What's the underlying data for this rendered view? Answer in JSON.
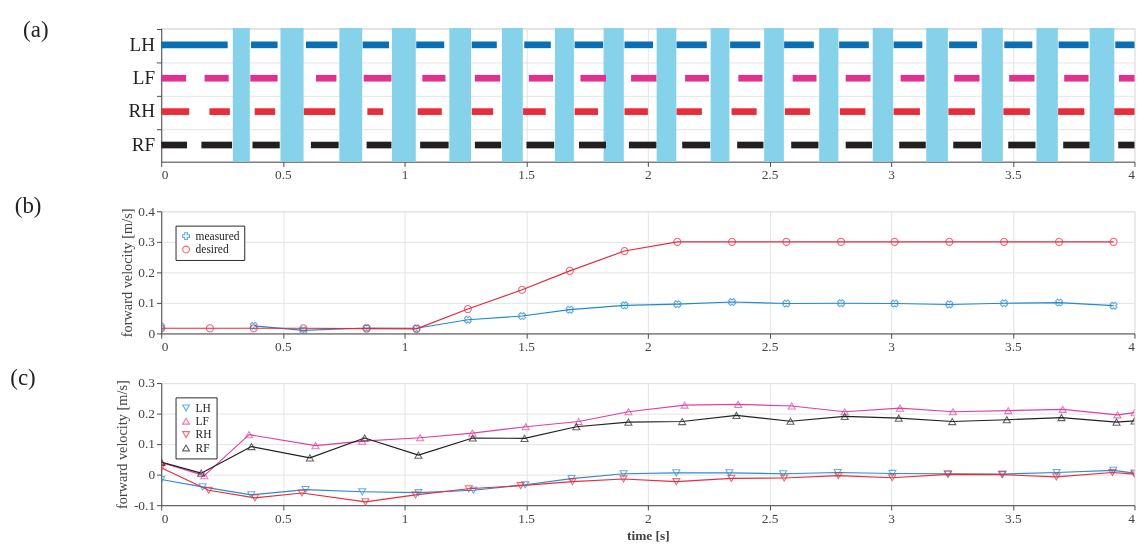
{
  "chart_data": [
    {
      "type": "bar",
      "title": "(a)",
      "orientation": "horizontal",
      "categories": [
        "LH",
        "LF",
        "RH",
        "RF"
      ],
      "xlim": [
        0,
        4
      ],
      "xticks": [
        0,
        0.5,
        1,
        1.5,
        2,
        2.5,
        3,
        3.5,
        4
      ],
      "grid": true,
      "series": [
        {
          "colors": [
            "#0a6eb4",
            "#e0318f",
            "#e82c3a",
            "#231f20"
          ],
          "base": [
            0,
            0,
            0,
            0
          ],
          "values": [
            0.273,
            0.102,
            0.115,
            0.106
          ]
        },
        {
          "colors": [
            "#0a6eb4",
            "#e0318f",
            "#e82c3a",
            "#231f20"
          ],
          "base": [
            0.369,
            0.178,
            0.198,
            0.165
          ],
          "values": [
            0.109,
            0.099,
            0.084,
            0.126
          ]
        },
        {
          "colors": [
            "#0a6eb4",
            "#e0318f",
            "#e82c3a",
            "#231f20"
          ],
          "base": [
            0.595,
            0.366,
            0.384,
            0.375
          ],
          "values": [
            0.129,
            0.112,
            0.084,
            0.112
          ]
        },
        {
          "colors": [
            "#0a6eb4",
            "#e0318f",
            "#e82c3a",
            "#231f20"
          ],
          "base": [
            0.828,
            0.636,
            0.586,
            0.615
          ],
          "values": [
            0.108,
            0.084,
            0.129,
            0.114
          ]
        },
        {
          "colors": [
            "#0a6eb4",
            "#e0318f",
            "#e82c3a",
            "#231f20"
          ],
          "base": [
            1.048,
            0.832,
            0.847,
            0.844
          ],
          "values": [
            0.115,
            0.114,
            0.065,
            0.102
          ]
        },
        {
          "colors": [
            "#0a6eb4",
            "#e0318f",
            "#e82c3a",
            "#231f20"
          ],
          "base": [
            1.276,
            1.073,
            1.054,
            1.064
          ],
          "values": [
            0.103,
            0.095,
            0.099,
            0.117
          ]
        },
        {
          "colors": [
            "#0a6eb4",
            "#e0318f",
            "#e82c3a",
            "#231f20"
          ],
          "base": [
            1.492,
            1.289,
            1.276,
            1.289
          ],
          "values": [
            0.109,
            0.104,
            0.088,
            0.108
          ]
        },
        {
          "colors": [
            "#0a6eb4",
            "#e0318f",
            "#e82c3a",
            "#231f20"
          ],
          "base": [
            1.699,
            1.511,
            1.487,
            1.501
          ],
          "values": [
            0.117,
            0.099,
            0.093,
            0.114
          ]
        },
        {
          "colors": [
            "#0a6eb4",
            "#e0318f",
            "#e82c3a",
            "#231f20"
          ],
          "base": [
            1.904,
            1.723,
            1.699,
            1.717
          ],
          "values": [
            0.117,
            0.105,
            0.096,
            0.111
          ]
        },
        {
          "colors": [
            "#0a6eb4",
            "#e0318f",
            "#e82c3a",
            "#231f20"
          ],
          "base": [
            2.118,
            1.931,
            1.904,
            1.922
          ],
          "values": [
            0.124,
            0.104,
            0.096,
            0.113
          ]
        },
        {
          "colors": [
            "#0a6eb4",
            "#e0318f",
            "#e82c3a",
            "#231f20"
          ],
          "base": [
            2.338,
            2.153,
            2.118,
            2.141
          ],
          "values": [
            0.124,
            0.098,
            0.104,
            0.115
          ]
        },
        {
          "colors": [
            "#0a6eb4",
            "#e0318f",
            "#e82c3a",
            "#231f20"
          ],
          "base": [
            2.56,
            2.372,
            2.344,
            2.367
          ],
          "values": [
            0.122,
            0.099,
            0.103,
            0.108
          ]
        },
        {
          "colors": [
            "#0a6eb4",
            "#e0318f",
            "#e82c3a",
            "#231f20"
          ],
          "base": [
            2.786,
            2.595,
            2.563,
            2.589
          ],
          "values": [
            0.122,
            0.098,
            0.103,
            0.112
          ]
        },
        {
          "colors": [
            "#0a6eb4",
            "#e0318f",
            "#e82c3a",
            "#231f20"
          ],
          "base": [
            3.01,
            2.813,
            2.789,
            2.813
          ],
          "values": [
            0.118,
            0.102,
            0.105,
            0.108
          ]
        },
        {
          "colors": [
            "#0a6eb4",
            "#e0318f",
            "#e82c3a",
            "#231f20"
          ],
          "base": [
            3.238,
            3.039,
            3.01,
            3.033
          ],
          "values": [
            0.115,
            0.098,
            0.108,
            0.109
          ]
        },
        {
          "colors": [
            "#0a6eb4",
            "#e0318f",
            "#e82c3a",
            "#231f20"
          ],
          "base": [
            3.465,
            3.259,
            3.235,
            3.255
          ],
          "values": [
            0.115,
            0.104,
            0.109,
            0.114
          ]
        },
        {
          "colors": [
            "#0a6eb4",
            "#e0318f",
            "#e82c3a",
            "#231f20"
          ],
          "base": [
            3.688,
            3.485,
            3.461,
            3.481
          ],
          "values": [
            0.123,
            0.104,
            0.109,
            0.112
          ]
        },
        {
          "colors": [
            "#0a6eb4",
            "#e0318f",
            "#e82c3a",
            "#231f20"
          ],
          "base": [
            3.921,
            3.711,
            3.686,
            3.707
          ],
          "values": [
            0.079,
            0.1,
            0.108,
            0.108
          ]
        },
        {
          "colors": [
            "#0a6eb4",
            "#e0318f",
            "#e82c3a",
            "#231f20"
          ],
          "base": [
            null,
            3.936,
            3.917,
            3.933
          ],
          "values": [
            null,
            0.064,
            0.083,
            0.067
          ]
        }
      ],
      "bands": [
        {
          "axis": "x",
          "from": 0.294,
          "to": 0.364,
          "color": "#86d2eb"
        },
        {
          "axis": "x",
          "from": 0.49,
          "to": 0.585,
          "color": "#86d2eb"
        },
        {
          "axis": "x",
          "from": 0.732,
          "to": 0.826,
          "color": "#86d2eb"
        },
        {
          "axis": "x",
          "from": 0.948,
          "to": 1.046,
          "color": "#86d2eb"
        },
        {
          "axis": "x",
          "from": 1.184,
          "to": 1.273,
          "color": "#86d2eb"
        },
        {
          "axis": "x",
          "from": 1.4,
          "to": 1.486,
          "color": "#86d2eb"
        },
        {
          "axis": "x",
          "from": 1.618,
          "to": 1.696,
          "color": "#86d2eb"
        },
        {
          "axis": "x",
          "from": 1.818,
          "to": 1.901,
          "color": "#86d2eb"
        },
        {
          "axis": "x",
          "from": 2.036,
          "to": 2.117,
          "color": "#86d2eb"
        },
        {
          "axis": "x",
          "from": 2.258,
          "to": 2.335,
          "color": "#86d2eb"
        },
        {
          "axis": "x",
          "from": 2.478,
          "to": 2.559,
          "color": "#86d2eb"
        },
        {
          "axis": "x",
          "from": 2.704,
          "to": 2.783,
          "color": "#86d2eb"
        },
        {
          "axis": "x",
          "from": 2.924,
          "to": 3.008,
          "color": "#86d2eb"
        },
        {
          "axis": "x",
          "from": 3.144,
          "to": 3.233,
          "color": "#86d2eb"
        },
        {
          "axis": "x",
          "from": 3.372,
          "to": 3.459,
          "color": "#86d2eb"
        },
        {
          "axis": "x",
          "from": 3.597,
          "to": 3.685,
          "color": "#86d2eb"
        },
        {
          "axis": "x",
          "from": 3.816,
          "to": 3.917,
          "color": "#86d2eb"
        }
      ]
    },
    {
      "type": "line",
      "title": "(b)",
      "ylabel": "forward velocity [m/s]",
      "xlim": [
        0,
        4
      ],
      "xticks": [
        0,
        0.5,
        1,
        1.5,
        2,
        2.5,
        3,
        3.5,
        4
      ],
      "ylim": [
        0,
        0.4
      ],
      "yticks": [
        0,
        0.1,
        0.2,
        0.3,
        0.4
      ],
      "grid": true,
      "legend": "top left",
      "x": [
        0,
        0.2,
        0.38,
        0.584,
        0.844,
        1.049,
        1.26,
        1.483,
        1.679,
        1.904,
        2.121,
        2.346,
        2.569,
        2.794,
        3.014,
        3.239,
        3.464,
        3.69,
        3.914
      ],
      "series": [
        {
          "name": "measured",
          "color": "#1f8ad0",
          "marker": "cross",
          "values": [
            0.022,
            null,
            0.025,
            0.01,
            0.018,
            0.017,
            0.045,
            0.057,
            0.078,
            0.092,
            0.096,
            0.103,
            0.098,
            0.099,
            0.098,
            0.095,
            0.099,
            0.101,
            0.091
          ]
        },
        {
          "name": "desired",
          "color": "#e8283a",
          "marker": "circle",
          "values": [
            0.017,
            0.017,
            0.017,
            0.017,
            0.016,
            0.015,
            0.08,
            0.143,
            0.205,
            0.27,
            0.3,
            0.3,
            0.3,
            0.3,
            0.3,
            0.3,
            0.3,
            0.3,
            0.3
          ]
        }
      ]
    },
    {
      "type": "line",
      "title": "(c)",
      "xlabel": "time [s]",
      "ylabel": "forward velocity [m/s]",
      "xlim": [
        0,
        4
      ],
      "xticks": [
        0,
        0.5,
        1,
        1.5,
        2,
        2.5,
        3,
        3.5,
        4
      ],
      "ylim": [
        -0.1,
        0.3
      ],
      "yticks": [
        -0.1,
        0,
        0.1,
        0.2,
        0.3
      ],
      "grid": true,
      "legend": "top left",
      "series": [
        {
          "name": "LH",
          "color": "#2d8ad0",
          "marker": "triangle-down",
          "x": [
            0,
            0.17,
            0.37,
            0.593,
            0.826,
            1.057,
            1.283,
            1.496,
            1.686,
            1.9,
            2.117,
            2.335,
            2.556,
            2.78,
            3.005,
            3.232,
            3.458,
            3.68,
            3.913,
            4
          ],
          "values": [
            -0.016,
            -0.04,
            -0.066,
            -0.049,
            -0.056,
            -0.059,
            -0.051,
            -0.033,
            -0.013,
            0.003,
            0.006,
            0.006,
            0.003,
            0.007,
            0.004,
            0.003,
            0.002,
            0.007,
            0.014,
            0.005
          ]
        },
        {
          "name": "LF",
          "color": "#e040a0",
          "marker": "triangle",
          "x": [
            0,
            0.177,
            0.361,
            0.634,
            0.826,
            1.064,
            1.279,
            1.498,
            1.716,
            1.92,
            2.151,
            2.371,
            2.591,
            2.809,
            3.036,
            3.254,
            3.481,
            3.705,
            3.93,
            4
          ],
          "values": [
            0.04,
            -0.003,
            0.131,
            0.095,
            0.11,
            0.121,
            0.136,
            0.157,
            0.174,
            0.206,
            0.228,
            0.23,
            0.225,
            0.206,
            0.218,
            0.206,
            0.21,
            0.214,
            0.196,
            0.203
          ]
        },
        {
          "name": "RH",
          "color": "#e82c3a",
          "marker": "triangle-down",
          "x": [
            0,
            0.195,
            0.385,
            0.578,
            0.839,
            1.045,
            1.264,
            1.477,
            1.69,
            1.9,
            2.117,
            2.343,
            2.56,
            2.783,
            3.004,
            3.234,
            3.456,
            3.679,
            3.909,
            4
          ],
          "values": [
            0.023,
            -0.051,
            -0.076,
            -0.06,
            -0.089,
            -0.066,
            -0.046,
            -0.036,
            -0.023,
            -0.014,
            -0.023,
            -0.012,
            -0.011,
            -0.003,
            -0.01,
            0.001,
            0,
            -0.007,
            0.007,
            0.002
          ]
        },
        {
          "name": "RF",
          "color": "#222222",
          "marker": "triangle",
          "x": [
            0,
            0.164,
            0.371,
            0.611,
            0.836,
            1.057,
            1.28,
            1.493,
            1.706,
            1.92,
            2.141,
            2.364,
            2.586,
            2.809,
            3.031,
            3.251,
            3.475,
            3.7,
            3.926,
            4
          ],
          "values": [
            0.041,
            0.005,
            0.092,
            0.055,
            0.12,
            0.064,
            0.12,
            0.119,
            0.157,
            0.172,
            0.174,
            0.194,
            0.175,
            0.191,
            0.185,
            0.174,
            0.18,
            0.187,
            0.172,
            0.176
          ]
        }
      ]
    }
  ]
}
